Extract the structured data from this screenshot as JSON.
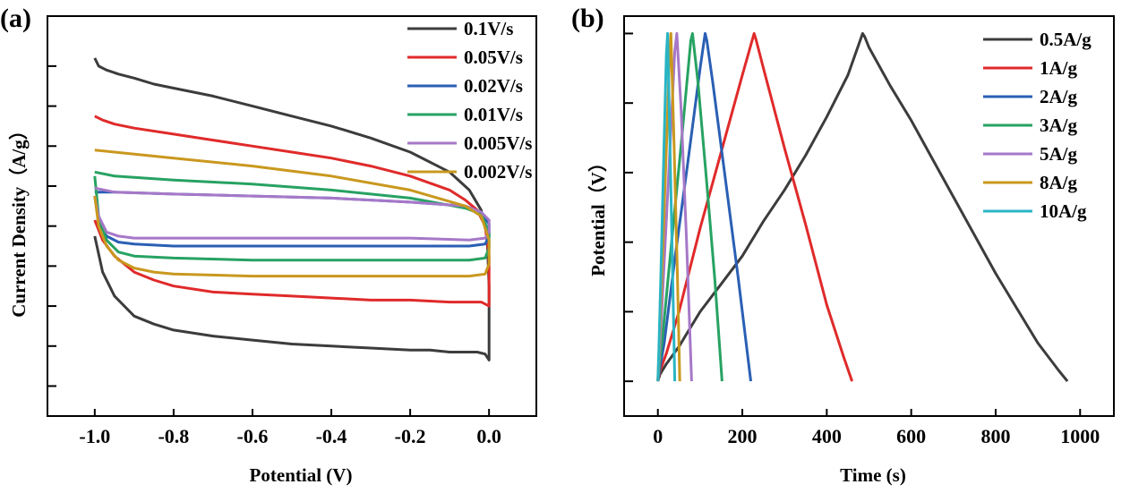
{
  "chart_data": [
    {
      "panel": "(a)",
      "type": "line",
      "xlabel": "Potential (V)",
      "ylabel": "Current Density（A/g）",
      "xlim": [
        -1.12,
        0.12
      ],
      "ylim": [
        -1.0,
        1.0
      ],
      "x_ticks": [
        -1.0,
        -0.8,
        -0.6,
        -0.4,
        -0.2,
        0.0
      ],
      "x_tick_labels": [
        "-1.0",
        "-0.8",
        "-0.6",
        "-0.4",
        "-0.2",
        "0.0"
      ],
      "y_ticks": [
        -0.85,
        -0.65,
        -0.45,
        -0.25,
        -0.05,
        0.15,
        0.35,
        0.55,
        0.75
      ],
      "legend_position": "top-right",
      "series": [
        {
          "name": "0.1V/s",
          "color": "#3c3c3c",
          "x": [
            -1.0,
            -0.98,
            -0.95,
            -0.9,
            -0.85,
            -0.8,
            -0.7,
            -0.6,
            -0.5,
            -0.4,
            -0.3,
            -0.2,
            -0.15,
            -0.1,
            -0.06,
            -0.03,
            -0.01,
            0.0,
            0.0,
            -0.005,
            -0.02,
            -0.05,
            -0.1,
            -0.2,
            -0.3,
            -0.4,
            -0.5,
            -0.6,
            -0.7,
            -0.8,
            -0.85,
            -0.9,
            -0.94,
            -0.97,
            -0.99,
            -1.0
          ],
          "y": [
            -0.1,
            -0.28,
            -0.4,
            -0.5,
            -0.54,
            -0.57,
            -0.6,
            -0.62,
            -0.64,
            -0.65,
            -0.66,
            -0.67,
            -0.67,
            -0.68,
            -0.68,
            -0.68,
            -0.69,
            -0.72,
            -0.35,
            -0.1,
            0.03,
            0.13,
            0.22,
            0.32,
            0.39,
            0.45,
            0.5,
            0.55,
            0.6,
            0.64,
            0.66,
            0.69,
            0.71,
            0.73,
            0.75,
            0.79
          ]
        },
        {
          "name": "0.05V/s",
          "color": "#e02a2a",
          "x": [
            -1.0,
            -0.98,
            -0.95,
            -0.9,
            -0.85,
            -0.8,
            -0.7,
            -0.6,
            -0.5,
            -0.4,
            -0.3,
            -0.2,
            -0.1,
            -0.05,
            -0.02,
            0.0,
            0.0,
            -0.01,
            -0.03,
            -0.06,
            -0.1,
            -0.2,
            -0.3,
            -0.4,
            -0.5,
            -0.6,
            -0.7,
            -0.8,
            -0.9,
            -0.95,
            -0.98,
            -1.0
          ],
          "y": [
            -0.02,
            -0.12,
            -0.2,
            -0.28,
            -0.32,
            -0.35,
            -0.38,
            -0.39,
            -0.4,
            -0.41,
            -0.42,
            -0.42,
            -0.43,
            -0.43,
            -0.43,
            -0.45,
            -0.2,
            -0.05,
            0.03,
            0.08,
            0.13,
            0.2,
            0.25,
            0.29,
            0.32,
            0.35,
            0.38,
            0.41,
            0.44,
            0.46,
            0.48,
            0.5
          ]
        },
        {
          "name": "0.02V/s",
          "color": "#2a5fb4",
          "x": [
            -1.0,
            -0.99,
            -0.97,
            -0.94,
            -0.9,
            -0.8,
            -0.6,
            -0.4,
            -0.2,
            -0.05,
            -0.01,
            0.0,
            0.0,
            -0.02,
            -0.06,
            -0.2,
            -0.4,
            -0.6,
            -0.8,
            -0.95,
            -1.0
          ],
          "y": [
            0.1,
            -0.03,
            -0.1,
            -0.13,
            -0.14,
            -0.15,
            -0.15,
            -0.15,
            -0.15,
            -0.15,
            -0.14,
            -0.1,
            -0.04,
            0.02,
            0.05,
            0.07,
            0.09,
            0.1,
            0.11,
            0.12,
            0.12
          ]
        },
        {
          "name": "0.01V/s",
          "color": "#27a262",
          "x": [
            -1.0,
            -0.99,
            -0.97,
            -0.94,
            -0.9,
            -0.8,
            -0.6,
            -0.4,
            -0.2,
            -0.05,
            -0.01,
            0.0,
            0.0,
            -0.02,
            -0.06,
            -0.2,
            -0.4,
            -0.6,
            -0.8,
            -0.95,
            -1.0
          ],
          "y": [
            0.2,
            0.0,
            -0.12,
            -0.18,
            -0.2,
            -0.21,
            -0.22,
            -0.22,
            -0.22,
            -0.22,
            -0.21,
            -0.16,
            -0.08,
            0.01,
            0.04,
            0.09,
            0.13,
            0.16,
            0.18,
            0.2,
            0.22
          ]
        },
        {
          "name": "0.005V/s",
          "color": "#a678c8",
          "x": [
            -1.0,
            -0.99,
            -0.97,
            -0.94,
            -0.9,
            -0.8,
            -0.6,
            -0.4,
            -0.2,
            -0.05,
            -0.01,
            0.0,
            0.0,
            -0.02,
            -0.06,
            -0.2,
            -0.4,
            -0.6,
            -0.8,
            -0.95,
            -1.0
          ],
          "y": [
            0.1,
            0.0,
            -0.08,
            -0.1,
            -0.11,
            -0.11,
            -0.11,
            -0.11,
            -0.11,
            -0.12,
            -0.11,
            -0.08,
            -0.02,
            0.02,
            0.05,
            0.07,
            0.09,
            0.1,
            0.11,
            0.12,
            0.14
          ]
        },
        {
          "name": "0.002V/s",
          "color": "#c9981e",
          "x": [
            -1.0,
            -0.99,
            -0.97,
            -0.94,
            -0.9,
            -0.85,
            -0.8,
            -0.6,
            -0.4,
            -0.2,
            -0.05,
            -0.01,
            0.0,
            0.0,
            -0.02,
            -0.06,
            -0.2,
            -0.4,
            -0.6,
            -0.8,
            -0.95,
            -1.0
          ],
          "y": [
            0.1,
            -0.05,
            -0.15,
            -0.22,
            -0.26,
            -0.28,
            -0.29,
            -0.3,
            -0.3,
            -0.3,
            -0.3,
            -0.29,
            -0.24,
            -0.12,
            0.0,
            0.05,
            0.13,
            0.2,
            0.25,
            0.29,
            0.32,
            0.33
          ]
        }
      ]
    },
    {
      "panel": "(b)",
      "type": "line",
      "xlabel": "Time (s)",
      "ylabel": "Potential（V）",
      "xlim": [
        -80,
        1080
      ],
      "ylim": [
        -0.1,
        1.05
      ],
      "x_ticks": [
        0,
        200,
        400,
        600,
        800,
        1000
      ],
      "x_tick_labels": [
        "0",
        "200",
        "400",
        "600",
        "800",
        "1000"
      ],
      "y_ticks": [
        0.0,
        0.2,
        0.4,
        0.6,
        0.8,
        1.0
      ],
      "legend_position": "top-right",
      "series": [
        {
          "name": "0.5A/g",
          "color": "#3c3c3c",
          "x": [
            0,
            5,
            20,
            50,
            100,
            150,
            200,
            250,
            300,
            350,
            400,
            450,
            485,
            490,
            500,
            550,
            600,
            650,
            700,
            750,
            800,
            850,
            900,
            950,
            970
          ],
          "y": [
            0.0,
            0.02,
            0.05,
            0.1,
            0.2,
            0.28,
            0.36,
            0.46,
            0.55,
            0.65,
            0.76,
            0.88,
            1.0,
            0.99,
            0.96,
            0.85,
            0.75,
            0.64,
            0.53,
            0.42,
            0.31,
            0.21,
            0.11,
            0.03,
            0.0
          ]
        },
        {
          "name": "1A/g",
          "color": "#e02a2a",
          "x": [
            0,
            5,
            20,
            50,
            100,
            150,
            200,
            228,
            233,
            250,
            300,
            350,
            400,
            440,
            460
          ],
          "y": [
            0.0,
            0.03,
            0.08,
            0.2,
            0.44,
            0.66,
            0.88,
            1.0,
            0.98,
            0.9,
            0.67,
            0.45,
            0.22,
            0.07,
            0.0
          ]
        },
        {
          "name": "2A/g",
          "color": "#2a5fb4",
          "x": [
            0,
            5,
            15,
            40,
            70,
            100,
            112,
            116,
            130,
            160,
            190,
            220
          ],
          "y": [
            0.0,
            0.04,
            0.11,
            0.35,
            0.62,
            0.9,
            1.0,
            0.98,
            0.86,
            0.58,
            0.3,
            0.0
          ]
        },
        {
          "name": "3A/g",
          "color": "#27a262",
          "x": [
            0,
            4,
            12,
            30,
            55,
            78,
            82,
            95,
            115,
            135,
            152
          ],
          "y": [
            0.0,
            0.05,
            0.14,
            0.37,
            0.68,
            0.98,
            1.0,
            0.86,
            0.58,
            0.29,
            0.0
          ]
        },
        {
          "name": "5A/g",
          "color": "#a678c8",
          "x": [
            0,
            3,
            10,
            25,
            40,
            45,
            55,
            68,
            80
          ],
          "y": [
            0.0,
            0.06,
            0.22,
            0.58,
            0.95,
            1.0,
            0.78,
            0.4,
            0.0
          ]
        },
        {
          "name": "8A/g",
          "color": "#c9981e",
          "x": [
            0,
            3,
            10,
            20,
            28,
            31,
            38,
            46,
            52
          ],
          "y": [
            0.0,
            0.09,
            0.32,
            0.67,
            0.95,
            1.0,
            0.7,
            0.32,
            0.0
          ]
        },
        {
          "name": "10A/g",
          "color": "#2ab4c4",
          "x": [
            0,
            2,
            7,
            14,
            20,
            23,
            28,
            34,
            40
          ],
          "y": [
            0.0,
            0.08,
            0.3,
            0.65,
            0.94,
            1.0,
            0.72,
            0.36,
            0.0
          ]
        }
      ]
    }
  ]
}
